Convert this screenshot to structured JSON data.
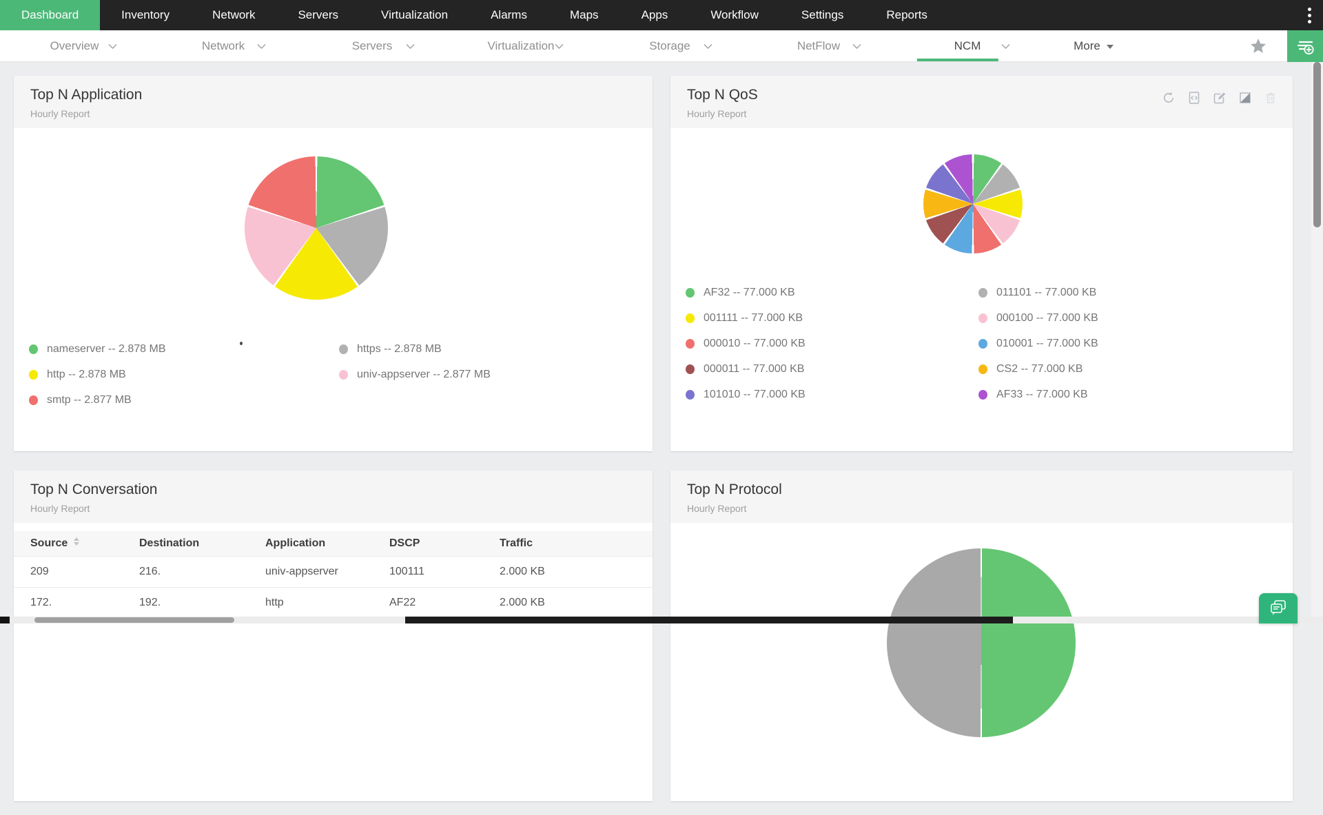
{
  "app": {
    "accent_green": "#4cb878",
    "nav_bg": "#242424",
    "page_bg": "#ecedef"
  },
  "topnav": {
    "items": [
      {
        "label": "Dashboard",
        "active": true
      },
      {
        "label": "Inventory"
      },
      {
        "label": "Network"
      },
      {
        "label": "Servers"
      },
      {
        "label": "Virtualization"
      },
      {
        "label": "Alarms"
      },
      {
        "label": "Maps"
      },
      {
        "label": "Apps"
      },
      {
        "label": "Workflow"
      },
      {
        "label": "Settings"
      },
      {
        "label": "Reports"
      }
    ]
  },
  "subnav": {
    "tabs": [
      {
        "label": "Overview"
      },
      {
        "label": "Network"
      },
      {
        "label": "Servers"
      },
      {
        "label": "Virtualization"
      },
      {
        "label": "Storage"
      },
      {
        "label": "NetFlow"
      },
      {
        "label": "NCM",
        "active": true
      }
    ],
    "more_label": "More"
  },
  "widgets": {
    "application": {
      "title": "Top N Application",
      "subtitle": "Hourly Report",
      "legend_cols": [
        [
          "nameserver",
          "http",
          "smtp"
        ],
        [
          "https",
          "univ-appserver"
        ]
      ]
    },
    "qos": {
      "title": "Top N QoS",
      "subtitle": "Hourly Report",
      "legend_cols": [
        [
          "AF32",
          "001111",
          "000010",
          "000011",
          "101010"
        ],
        [
          "011101",
          "000100",
          "010001",
          "CS2",
          "AF33"
        ]
      ],
      "toolbar": [
        "refresh",
        "export",
        "edit",
        "contrast",
        "delete"
      ]
    },
    "conversation": {
      "title": "Top N Conversation",
      "subtitle": "Hourly Report",
      "table": {
        "headers": [
          "Source",
          "Destination",
          "Application",
          "DSCP",
          "Traffic"
        ],
        "sortable_col": 0,
        "rows": [
          [
            "209",
            "216.",
            "univ-appserver",
            "100111",
            "2.000 KB"
          ],
          [
            "172.",
            "192.",
            "http",
            "AF22",
            "2.000 KB"
          ]
        ]
      }
    },
    "protocol": {
      "title": "Top N Protocol",
      "subtitle": "Hourly Report"
    }
  },
  "legend_separator": " -- ",
  "chart_data": [
    {
      "id": "application",
      "type": "pie",
      "title": "Top N Application",
      "unit": "MB",
      "slices_clockwise_from_top": [
        {
          "label": "nameserver",
          "value": 2.878,
          "display": "2.878 MB",
          "color": "#64c672"
        },
        {
          "label": "https",
          "value": 2.878,
          "display": "2.878 MB",
          "color": "#b1b1b1"
        },
        {
          "label": "http",
          "value": 2.878,
          "display": "2.878 MB",
          "color": "#f6e903"
        },
        {
          "label": "univ-appserver",
          "value": 2.877,
          "display": "2.877 MB",
          "color": "#f9c2d2"
        },
        {
          "label": "smtp",
          "value": 2.877,
          "display": "2.877 MB",
          "color": "#f0706d"
        }
      ]
    },
    {
      "id": "qos",
      "type": "pie",
      "title": "Top N QoS",
      "unit": "KB",
      "slices_clockwise_from_top": [
        {
          "label": "AF32",
          "value": 77.0,
          "display": "77.000 KB",
          "color": "#64c672"
        },
        {
          "label": "011101",
          "value": 77.0,
          "display": "77.000 KB",
          "color": "#b1b1b1"
        },
        {
          "label": "001111",
          "value": 77.0,
          "display": "77.000 KB",
          "color": "#f6e903"
        },
        {
          "label": "000100",
          "value": 77.0,
          "display": "77.000 KB",
          "color": "#f9c2d2"
        },
        {
          "label": "000010",
          "value": 77.0,
          "display": "77.000 KB",
          "color": "#f0706d"
        },
        {
          "label": "010001",
          "value": 77.0,
          "display": "77.000 KB",
          "color": "#5ca8e0"
        },
        {
          "label": "000011",
          "value": 77.0,
          "display": "77.000 KB",
          "color": "#a05252"
        },
        {
          "label": "CS2",
          "value": 77.0,
          "display": "77.000 KB",
          "color": "#f8b713"
        },
        {
          "label": "101010",
          "value": 77.0,
          "display": "77.000 KB",
          "color": "#7b74ce"
        },
        {
          "label": "AF33",
          "value": 77.0,
          "display": "77.000 KB",
          "color": "#ad53d2"
        }
      ]
    },
    {
      "id": "protocol",
      "type": "pie",
      "title": "Top N Protocol",
      "unit": "",
      "note": "only top half of pie visible above fold; two equal halves",
      "slices_clockwise_from_top": [
        {
          "label": "",
          "value": 50,
          "display": "",
          "color": "#64c672"
        },
        {
          "label": "",
          "value": 50,
          "display": "",
          "color": "#a9a9a9"
        }
      ]
    }
  ]
}
